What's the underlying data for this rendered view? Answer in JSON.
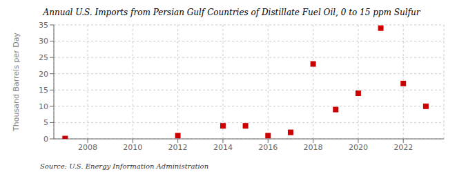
{
  "chart_data": {
    "type": "scatter",
    "title": "Annual U.S. Imports from Persian Gulf Countries of Distillate Fuel Oil, 0 to 15 ppm Sulfur",
    "y_label": "Thousand Barrels per Day",
    "annotations": [
      "Source: U.S. Energy Information Administration"
    ],
    "x": [
      2007,
      2012,
      2014,
      2015,
      2016,
      2017,
      2018,
      2019,
      2020,
      2021,
      2022,
      2023
    ],
    "values": [
      0.1,
      1,
      4,
      4,
      1,
      2,
      23,
      9,
      14,
      34,
      17,
      10
    ],
    "color": "#cc0000",
    "marker": "square",
    "xlim": [
      2006.5,
      2023.8
    ],
    "xticks": [
      2008,
      2010,
      2012,
      2014,
      2016,
      2018,
      2020,
      2022
    ],
    "ylim": [
      0,
      35
    ],
    "yticks": [
      0,
      5,
      10,
      15,
      20,
      25,
      30,
      35
    ],
    "grid": true
  }
}
